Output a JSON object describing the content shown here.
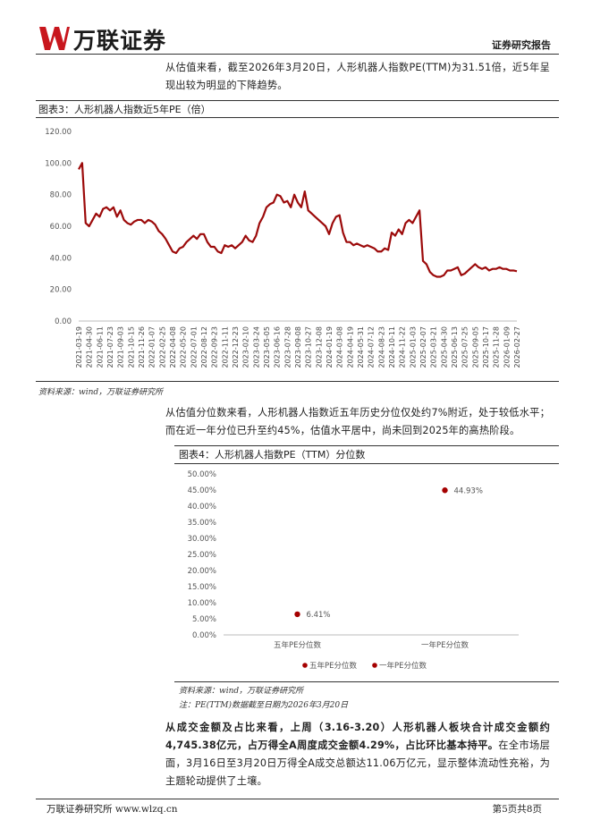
{
  "header": {
    "logo": "万联证券",
    "report_type": "证券研究报告"
  },
  "paragraphs": [
    {
      "text": "从估值来看，截至2026年3月20日，人形机器人指数PE(TTM)为31.51倍，近5年呈现出较为明显的下降趋势。"
    },
    {
      "text": "从估值分位数来看，人形机器人指数近五年历史分位仅处约7%附近，处于较低水平；而在近一年分位已升至约45%，估值水平居中，尚未回到2025年的高热阶段。"
    },
    {
      "bold": "从成交金额及占比来看，上周（3.16-3.20）人形机器人板块合计成交金额约4,745.38亿元，占万得全A周度成交金额4.29%，占比环比基本持平。",
      "text": "在全市场层面，3月16日至3月20日万得全A成交总额达11.06万亿元，显示整体流动性充裕，为主题轮动提供了土壤。"
    }
  ],
  "figures": [
    {
      "title": "图表3：人形机器人指数近5年PE（倍）",
      "source": "资料来源：wind，万联证券研究所"
    },
    {
      "title": "图表4：人形机器人指数PE（TTM）分位数",
      "source": "资料来源：wind，万联证券研究所",
      "note": "注：PE(TTM)数据截至日期为2026年3月20日"
    }
  ],
  "chart_data": [
    {
      "type": "line",
      "color": "#9c0a0a",
      "categories": [
        "2021-03-19",
        null,
        null,
        "2021-04-30",
        null,
        null,
        "2021-06-11",
        null,
        null,
        "2021-07-23",
        null,
        null,
        "2021-09-03",
        null,
        null,
        "2021-10-15",
        null,
        null,
        "2021-11-26",
        null,
        null,
        "2022-01-07",
        null,
        null,
        "2022-02-25",
        null,
        null,
        "2022-04-08",
        null,
        null,
        "2022-05-20",
        null,
        null,
        "2022-07-01",
        null,
        null,
        "2022-08-12",
        null,
        null,
        "2022-09-23",
        null,
        null,
        "2022-11-11",
        null,
        null,
        "2022-12-23",
        null,
        null,
        "2023-02-10",
        null,
        null,
        "2023-03-24",
        null,
        null,
        "2023-05-05",
        null,
        null,
        "2023-06-16",
        null,
        null,
        "2023-07-28",
        null,
        null,
        "2023-09-08",
        null,
        null,
        "2023-10-27",
        null,
        null,
        "2023-12-08",
        null,
        null,
        "2024-01-19",
        null,
        null,
        "2024-03-08",
        null,
        null,
        "2024-04-19",
        null,
        null,
        "2024-05-31",
        null,
        null,
        "2024-07-12",
        null,
        null,
        "2024-08-23",
        null,
        null,
        "2024-10-11",
        null,
        null,
        "2024-11-22",
        null,
        null,
        "2025-01-03",
        null,
        null,
        "2025-02-07",
        null,
        null,
        "2025-03-21",
        null,
        null,
        "2025-04-30",
        null,
        null,
        "2025-06-13",
        null,
        null,
        "2025-07-25",
        null,
        null,
        "2025-09-05",
        null,
        null,
        "2025-10-17",
        null,
        null,
        "2025-11-28",
        null,
        null,
        "2026-01-09",
        null,
        null,
        "2026-02-27"
      ],
      "values": [
        96,
        100,
        62,
        60,
        64,
        68,
        66,
        71,
        72,
        70,
        72,
        66,
        70,
        64,
        62,
        61,
        63,
        64,
        64,
        62,
        64,
        63,
        61,
        57,
        55,
        52,
        48,
        44,
        43,
        46,
        47,
        50,
        52,
        54,
        52,
        55,
        55,
        50,
        47,
        47,
        44,
        43,
        48,
        47,
        48,
        46,
        48,
        50,
        54,
        51,
        50,
        54,
        62,
        66,
        72,
        74,
        75,
        80,
        79,
        75,
        76,
        72,
        80,
        75,
        72,
        82,
        70,
        68,
        66,
        64,
        62,
        60,
        55,
        62,
        66,
        67,
        56,
        50,
        50,
        48,
        49,
        48,
        47,
        48,
        47,
        46,
        44,
        44,
        46,
        45,
        56,
        54,
        58,
        55,
        62,
        64,
        62,
        66,
        70,
        38,
        36,
        31,
        29,
        28,
        28,
        29,
        32,
        32,
        33,
        34,
        29,
        30,
        32,
        34,
        36,
        34,
        33,
        34,
        32,
        33,
        33,
        34,
        33,
        33,
        32,
        32,
        31.51
      ],
      "ylim": [
        0,
        120
      ],
      "yticks": [
        {
          "value": 0,
          "label": "0.00"
        },
        {
          "value": 20,
          "label": "20.00"
        },
        {
          "value": 40,
          "label": "40.00"
        },
        {
          "value": 60,
          "label": "60.00"
        },
        {
          "value": 80,
          "label": "80.00"
        },
        {
          "value": 100,
          "label": "100.00"
        },
        {
          "value": 120,
          "label": "120.00"
        }
      ],
      "grid": false
    },
    {
      "type": "dot",
      "categories": [
        "五年PE分位数",
        "一年PE分位数"
      ],
      "series": [
        {
          "name": "五年PE分位数",
          "color": "#a50000",
          "values": [
            6.41,
            null
          ],
          "value_labels": [
            "6.41%",
            null
          ]
        },
        {
          "name": "一年PE分位数",
          "color": "#a50000",
          "values": [
            null,
            44.93
          ],
          "value_labels": [
            null,
            "44.93%"
          ]
        }
      ],
      "ylim": [
        0,
        50
      ],
      "yticks": [
        {
          "value": 0,
          "label": "0.00%"
        },
        {
          "value": 5,
          "label": "5.00%"
        },
        {
          "value": 10,
          "label": "10.00%"
        },
        {
          "value": 15,
          "label": "15.00%"
        },
        {
          "value": 20,
          "label": "20.00%"
        },
        {
          "value": 25,
          "label": "25.00%"
        },
        {
          "value": 30,
          "label": "30.00%"
        },
        {
          "value": 35,
          "label": "35.00%"
        },
        {
          "value": 40,
          "label": "40.00%"
        },
        {
          "value": 45,
          "label": "45.00%"
        },
        {
          "value": 50,
          "label": "50.00%"
        }
      ],
      "legend": "bottom",
      "grid": false
    }
  ],
  "footer": {
    "left": "万联证券研究所  www.wlzq.cn",
    "right": "第5页共8页"
  }
}
